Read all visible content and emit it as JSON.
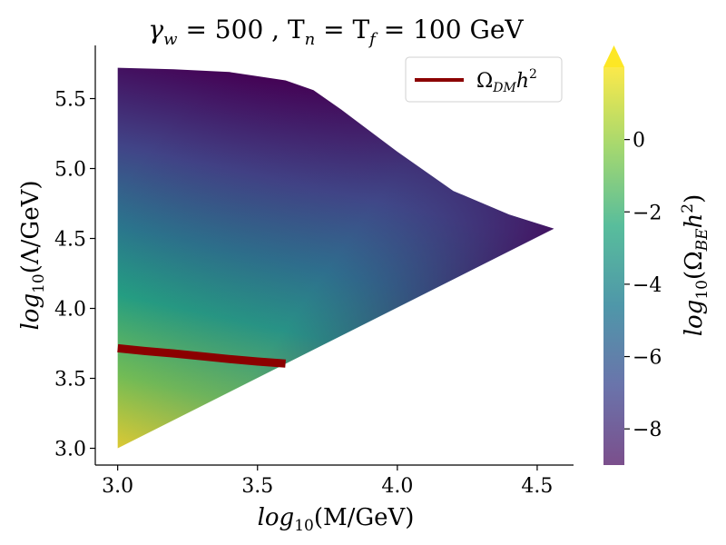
{
  "chart_data": {
    "type": "heatmap",
    "title": {
      "main": "γ",
      "sub_w": "w",
      "mid": " = 500 , T",
      "sub_n": "n",
      "eq": " = T",
      "sub_f": "f",
      "tail": " = 100 GeV"
    },
    "xlabel": {
      "pre": "log",
      "sub": "10",
      "post": "(M/GeV)"
    },
    "ylabel": {
      "pre": "log",
      "sub": "10",
      "post": "(Λ/GeV)"
    },
    "xlim": [
      2.92,
      4.63
    ],
    "ylim": [
      2.88,
      5.88
    ],
    "x_ticks": [
      3.0,
      3.5,
      4.0,
      4.5
    ],
    "x_tick_labels": [
      "3.0",
      "3.5",
      "4.0",
      "4.5"
    ],
    "y_ticks": [
      3.0,
      3.5,
      4.0,
      4.5,
      5.0,
      5.5
    ],
    "y_tick_labels": [
      "3.0",
      "3.5",
      "4.0",
      "4.5",
      "5.0",
      "5.5"
    ],
    "grid": false,
    "region_boundary": [
      [
        3.0,
        3.0
      ],
      [
        3.0,
        5.72
      ],
      [
        3.2,
        5.71
      ],
      [
        3.4,
        5.69
      ],
      [
        3.6,
        5.63
      ],
      [
        3.7,
        5.56
      ],
      [
        3.8,
        5.42
      ],
      [
        4.0,
        5.12
      ],
      [
        4.2,
        4.84
      ],
      [
        4.4,
        4.67
      ],
      [
        4.56,
        4.57
      ],
      [
        3.0,
        3.0
      ]
    ],
    "color_field": {
      "quantity": "log10(Omega_BE h^2)",
      "value_at_corner_3.0_3.0": 1.5,
      "value_at_corner_3.0_5.72": -8.8,
      "value_at_corner_4.56_4.57": -8.5,
      "value_along_lower_diagonal": -2.0
    },
    "series": [
      {
        "name_parts": {
          "sym": "Ω",
          "sub": "DM",
          "post": "h",
          "sup": "2"
        },
        "color": "#8b0000",
        "x": [
          3.0,
          3.1,
          3.2,
          3.3,
          3.4,
          3.5,
          3.6
        ],
        "y": [
          3.715,
          3.695,
          3.678,
          3.658,
          3.638,
          3.62,
          3.605
        ]
      }
    ],
    "legend_position": "top-right",
    "colorbar": {
      "label": {
        "pre": "log",
        "sub": "10",
        "mid": "(Ω",
        "sub2": "BE",
        "post": "h",
        "sup": "2",
        "end": ")"
      },
      "range": [
        -9,
        2
      ],
      "ticks": [
        0,
        -2,
        -4,
        -6,
        -8
      ],
      "tick_labels": [
        "0",
        "−2",
        "−4",
        "−6",
        "−8"
      ],
      "extend": "max",
      "colormap": "viridis"
    }
  }
}
